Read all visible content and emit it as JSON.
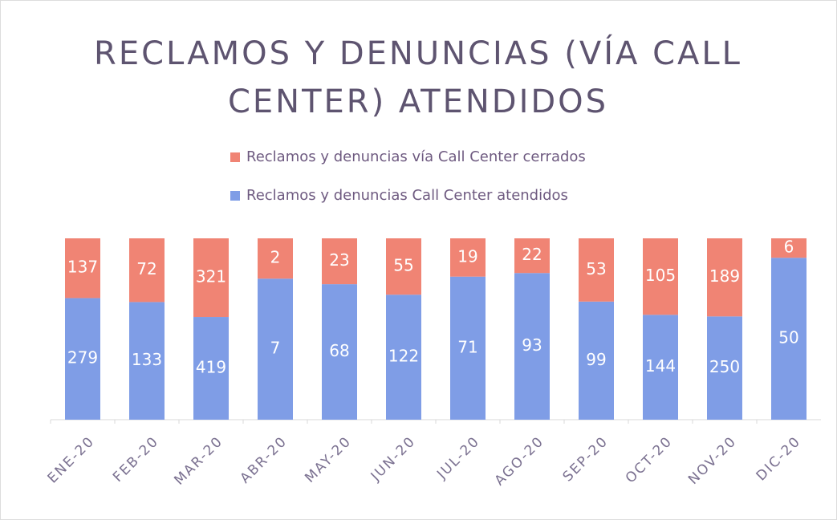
{
  "chart_data": {
    "type": "bar",
    "stacked": "percent",
    "title": "RECLAMOS Y DENUNCIAS (VÍA CALL CENTER) ATENDIDOS",
    "categories": [
      "ENE-20",
      "FEB-20",
      "MAR-20",
      "ABR-20",
      "MAY-20",
      "JUN-20",
      "JUL-20",
      "AGO-20",
      "SEP-20",
      "OCT-20",
      "NOV-20",
      "DIC-20"
    ],
    "series": [
      {
        "name": "Reclamos y denuncias Call Center atendidos",
        "color": "#7f9de6",
        "values": [
          279,
          133,
          419,
          7,
          68,
          122,
          71,
          93,
          99,
          144,
          250,
          50
        ]
      },
      {
        "name": "Reclamos y denuncias vía Call Center cerrados",
        "color": "#f08474",
        "values": [
          137,
          72,
          321,
          2,
          23,
          55,
          19,
          22,
          53,
          105,
          189,
          6
        ]
      }
    ],
    "legend": "top"
  }
}
